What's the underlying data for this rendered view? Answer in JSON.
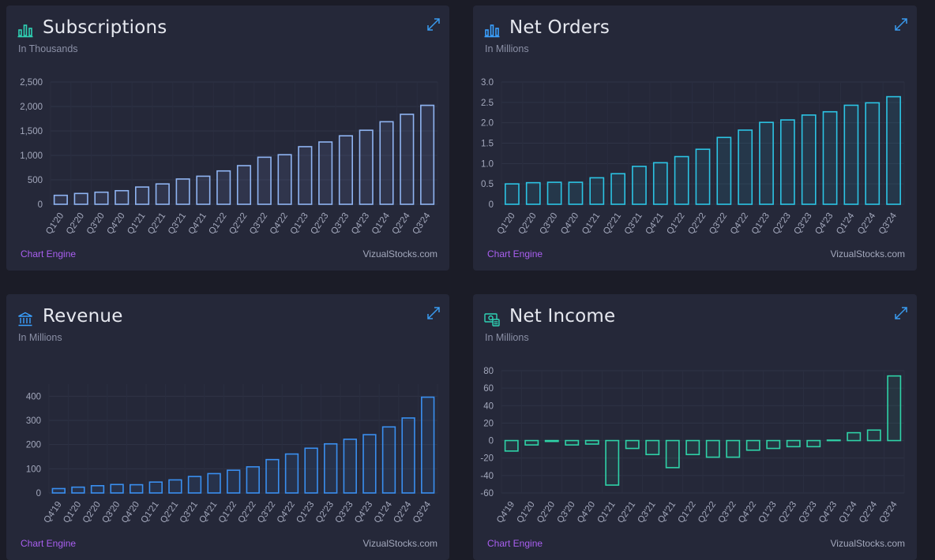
{
  "footer": {
    "engine_label": "Chart Engine",
    "source_label": "VizualStocks.com"
  },
  "colors": {
    "background": "#1b1c27",
    "card": "#252839",
    "accent_link": "#a95ff0"
  },
  "cards": [
    {
      "title": "Subscriptions",
      "subtitle": "In Thousands",
      "icon": "bar-chart-icon",
      "icon_color": "#2fd3b5"
    },
    {
      "title": "Net Orders",
      "subtitle": "In Millions",
      "icon": "bar-chart-icon",
      "icon_color": "#3aa1ff"
    },
    {
      "title": "Revenue",
      "subtitle": "In Millions",
      "icon": "bank-icon",
      "icon_color": "#3aa1ff"
    },
    {
      "title": "Net Income",
      "subtitle": "In Millions",
      "icon": "money-icon",
      "icon_color": "#2fd3b5"
    }
  ],
  "chart_data": [
    {
      "type": "bar",
      "title": "Subscriptions",
      "ylabel": "In Thousands",
      "categories": [
        "Q1'20",
        "Q2'20",
        "Q3'20",
        "Q4'20",
        "Q1'21",
        "Q2'21",
        "Q3'21",
        "Q4'21",
        "Q1'22",
        "Q2'22",
        "Q3'22",
        "Q4'22",
        "Q1'23",
        "Q2'23",
        "Q3'23",
        "Q4'23",
        "Q1'24",
        "Q2'24",
        "Q3'24"
      ],
      "values": [
        183,
        221,
        247,
        278,
        353,
        416,
        517,
        574,
        682,
        790,
        962,
        1014,
        1178,
        1274,
        1400,
        1514,
        1688,
        1840,
        2024
      ],
      "ylim": [
        0,
        2500
      ],
      "yticks": [
        0,
        500,
        1000,
        1500,
        2000,
        2500
      ],
      "ytick_labels": [
        "0",
        "500",
        "1,000",
        "1,500",
        "2,000",
        "2,500"
      ],
      "color": "#8fb4f2",
      "grid": true
    },
    {
      "type": "bar",
      "title": "Net Orders",
      "ylabel": "In Millions",
      "categories": [
        "Q1'20",
        "Q2'20",
        "Q3'20",
        "Q4'20",
        "Q1'21",
        "Q2'21",
        "Q3'21",
        "Q4'21",
        "Q1'22",
        "Q2'22",
        "Q3'22",
        "Q4'22",
        "Q1'23",
        "Q2'23",
        "Q3'23",
        "Q4'23",
        "Q1'24",
        "Q2'24",
        "Q3'24"
      ],
      "values": [
        0.5,
        0.53,
        0.54,
        0.54,
        0.65,
        0.75,
        0.93,
        1.02,
        1.17,
        1.35,
        1.64,
        1.82,
        2.01,
        2.07,
        2.19,
        2.27,
        2.43,
        2.49,
        2.64
      ],
      "ylim": [
        0,
        3
      ],
      "yticks": [
        0,
        0.5,
        1.0,
        1.5,
        2.0,
        2.5,
        3.0
      ],
      "ytick_labels": [
        "0",
        "0.5",
        "1.0",
        "1.5",
        "2.0",
        "2.5",
        "3.0"
      ],
      "color": "#2cc4e4",
      "grid": true
    },
    {
      "type": "bar",
      "title": "Revenue",
      "ylabel": "In Millions",
      "categories": [
        "Q4'19",
        "Q1'20",
        "Q2'20",
        "Q3'20",
        "Q4'20",
        "Q1'21",
        "Q2'21",
        "Q3'21",
        "Q4'21",
        "Q1'22",
        "Q2'22",
        "Q3'22",
        "Q4'22",
        "Q1'23",
        "Q2'23",
        "Q3'23",
        "Q4'23",
        "Q1'24",
        "Q2'24",
        "Q3'24"
      ],
      "values": [
        18,
        24,
        30,
        35,
        34,
        45,
        54,
        68,
        80,
        94,
        108,
        138,
        161,
        185,
        203,
        222,
        241,
        273,
        310,
        396
      ],
      "ylim": [
        0,
        450
      ],
      "yticks": [
        0,
        100,
        200,
        300,
        400
      ],
      "ytick_labels": [
        "0",
        "100",
        "200",
        "300",
        "400"
      ],
      "color": "#3a8ff0",
      "grid": true
    },
    {
      "type": "bar",
      "title": "Net Income",
      "ylabel": "In Millions",
      "categories": [
        "Q4'19",
        "Q1'20",
        "Q2'20",
        "Q3'20",
        "Q4'20",
        "Q1'21",
        "Q2'21",
        "Q3'21",
        "Q4'21",
        "Q1'22",
        "Q2'22",
        "Q3'22",
        "Q4'22",
        "Q1'23",
        "Q2'23",
        "Q3'23",
        "Q4'23",
        "Q1'24",
        "Q2'24",
        "Q3'24"
      ],
      "values": [
        -12,
        -5,
        -1,
        -5,
        -4,
        -51,
        -9,
        -16,
        -31,
        -16,
        -19,
        -19,
        -11,
        -9,
        -7,
        -7,
        0.5,
        9,
        12,
        74
      ],
      "ylim": [
        -60,
        80
      ],
      "yticks": [
        -60,
        -40,
        -20,
        0,
        20,
        40,
        60,
        80
      ],
      "ytick_labels": [
        "-60",
        "-40",
        "-20",
        "0",
        "20",
        "40",
        "60",
        "80"
      ],
      "color": "#2fd3a8",
      "grid": true
    }
  ]
}
